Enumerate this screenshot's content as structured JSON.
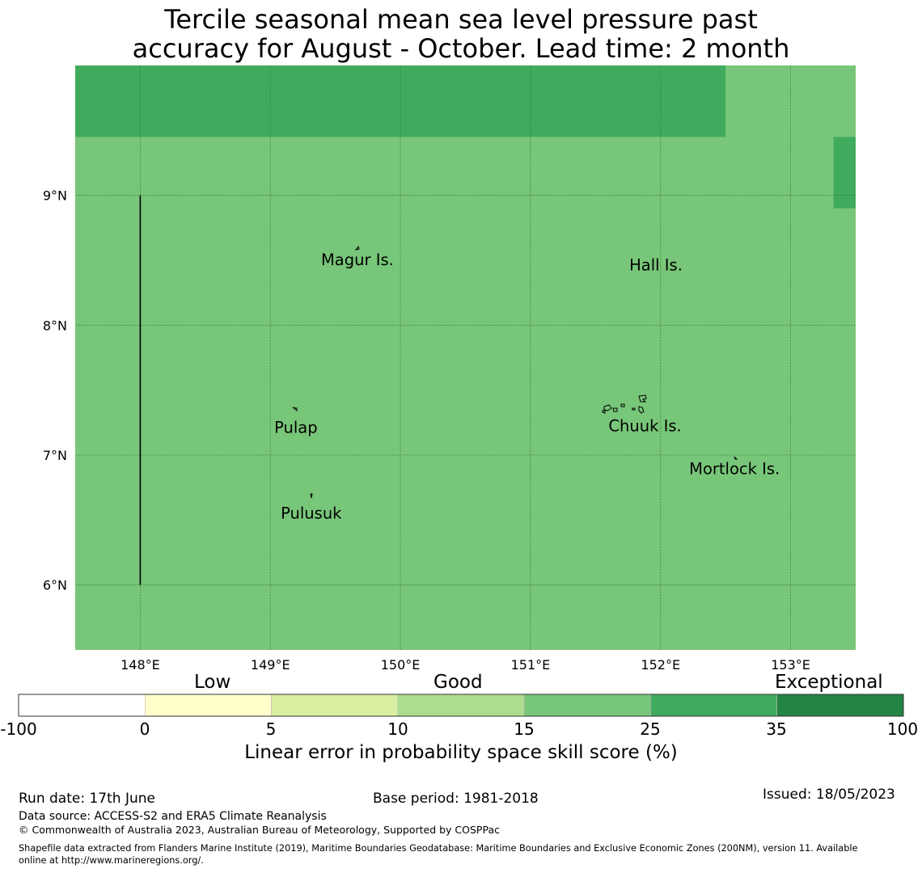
{
  "title": {
    "line1": "Tercile seasonal mean sea level pressure past",
    "line2": "accuracy for August - October. Lead time: 2 month"
  },
  "map": {
    "lon_range": [
      147.5,
      153.5
    ],
    "lat_range": [
      5.5,
      10.0
    ],
    "background_category_color": "#78c679",
    "high_skill_color": "#41ab5d",
    "high_skill_cells": [
      {
        "lon": [
          147.5,
          152.5
        ],
        "lat": [
          9.45,
          10.0
        ]
      },
      {
        "lon": [
          153.33,
          153.5
        ],
        "lat": [
          8.9,
          9.45
        ]
      }
    ],
    "grid": true,
    "lon_ticks": [
      "148°E",
      "149°E",
      "150°E",
      "151°E",
      "152°E",
      "153°E"
    ],
    "lat_ticks": [
      "9°N",
      "8°N",
      "7°N",
      "6°N"
    ],
    "boundary_line": {
      "lon": 148.0,
      "lat": [
        6.0,
        9.0
      ]
    },
    "places": [
      {
        "name": "Magur Is.",
        "lon": 149.39,
        "lat": 8.5
      },
      {
        "name": "Hall Is.",
        "lon": 151.76,
        "lat": 8.46
      },
      {
        "name": "Pulap",
        "lon": 149.03,
        "lat": 7.21
      },
      {
        "name": "Chuuk Is.",
        "lon": 151.6,
        "lat": 7.22
      },
      {
        "name": "Mortlock Is.",
        "lon": 152.22,
        "lat": 6.89
      },
      {
        "name": "Pulusuk",
        "lon": 149.08,
        "lat": 6.55
      }
    ]
  },
  "colorbar": {
    "categories": [
      "Low",
      "Good",
      "Exceptional"
    ],
    "ticks": [
      "-100",
      "0",
      "5",
      "10",
      "15",
      "25",
      "35",
      "100"
    ],
    "colors": [
      "#ffffff",
      "#ffffcc",
      "#d9f0a3",
      "#addd8e",
      "#78c679",
      "#41ab5d",
      "#238443"
    ],
    "title": "Linear error in probability space skill score (%)"
  },
  "footer": {
    "run_date": "Run date: 17th June",
    "base_period": "Base period: 1981-2018",
    "issued": "Issued: 18/05/2023",
    "data_source": "Data source: ACCESS-S2 and ERA5 Climate Reanalysis",
    "copyright": "© Commonwealth of Australia 2023, Australian Bureau of Meteorology, Supported by COSPPac",
    "shapefile_line1": "Shapefile data extracted from Flanders Marine Institute (2019), Maritime Boundaries Geodatabase: Maritime Boundaries and Exclusive Economic Zones (200NM), version 11. Available",
    "shapefile_line2": "online at http://www.marineregions.org/."
  }
}
